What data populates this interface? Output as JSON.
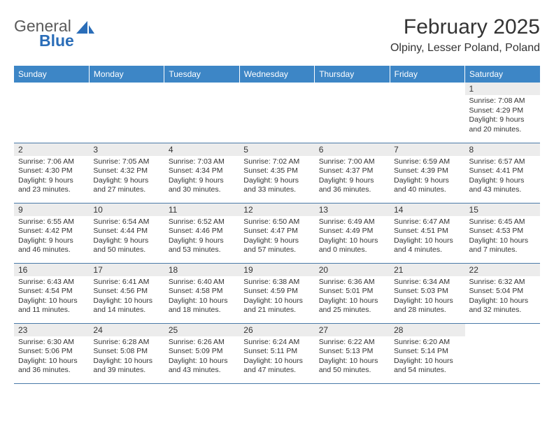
{
  "logo": {
    "text1": "General",
    "text2": "Blue",
    "shape_color": "#2a6db8"
  },
  "title": "February 2025",
  "location": "Olpiny, Lesser Poland, Poland",
  "header_bg": "#3d86c6",
  "daynum_bg": "#ececec",
  "border_color": "#4a7aa8",
  "day_names": [
    "Sunday",
    "Monday",
    "Tuesday",
    "Wednesday",
    "Thursday",
    "Friday",
    "Saturday"
  ],
  "weeks": [
    [
      null,
      null,
      null,
      null,
      null,
      null,
      {
        "n": "1",
        "sr": "Sunrise: 7:08 AM",
        "ss": "Sunset: 4:29 PM",
        "dl": "Daylight: 9 hours and 20 minutes."
      }
    ],
    [
      {
        "n": "2",
        "sr": "Sunrise: 7:06 AM",
        "ss": "Sunset: 4:30 PM",
        "dl": "Daylight: 9 hours and 23 minutes."
      },
      {
        "n": "3",
        "sr": "Sunrise: 7:05 AM",
        "ss": "Sunset: 4:32 PM",
        "dl": "Daylight: 9 hours and 27 minutes."
      },
      {
        "n": "4",
        "sr": "Sunrise: 7:03 AM",
        "ss": "Sunset: 4:34 PM",
        "dl": "Daylight: 9 hours and 30 minutes."
      },
      {
        "n": "5",
        "sr": "Sunrise: 7:02 AM",
        "ss": "Sunset: 4:35 PM",
        "dl": "Daylight: 9 hours and 33 minutes."
      },
      {
        "n": "6",
        "sr": "Sunrise: 7:00 AM",
        "ss": "Sunset: 4:37 PM",
        "dl": "Daylight: 9 hours and 36 minutes."
      },
      {
        "n": "7",
        "sr": "Sunrise: 6:59 AM",
        "ss": "Sunset: 4:39 PM",
        "dl": "Daylight: 9 hours and 40 minutes."
      },
      {
        "n": "8",
        "sr": "Sunrise: 6:57 AM",
        "ss": "Sunset: 4:41 PM",
        "dl": "Daylight: 9 hours and 43 minutes."
      }
    ],
    [
      {
        "n": "9",
        "sr": "Sunrise: 6:55 AM",
        "ss": "Sunset: 4:42 PM",
        "dl": "Daylight: 9 hours and 46 minutes."
      },
      {
        "n": "10",
        "sr": "Sunrise: 6:54 AM",
        "ss": "Sunset: 4:44 PM",
        "dl": "Daylight: 9 hours and 50 minutes."
      },
      {
        "n": "11",
        "sr": "Sunrise: 6:52 AM",
        "ss": "Sunset: 4:46 PM",
        "dl": "Daylight: 9 hours and 53 minutes."
      },
      {
        "n": "12",
        "sr": "Sunrise: 6:50 AM",
        "ss": "Sunset: 4:47 PM",
        "dl": "Daylight: 9 hours and 57 minutes."
      },
      {
        "n": "13",
        "sr": "Sunrise: 6:49 AM",
        "ss": "Sunset: 4:49 PM",
        "dl": "Daylight: 10 hours and 0 minutes."
      },
      {
        "n": "14",
        "sr": "Sunrise: 6:47 AM",
        "ss": "Sunset: 4:51 PM",
        "dl": "Daylight: 10 hours and 4 minutes."
      },
      {
        "n": "15",
        "sr": "Sunrise: 6:45 AM",
        "ss": "Sunset: 4:53 PM",
        "dl": "Daylight: 10 hours and 7 minutes."
      }
    ],
    [
      {
        "n": "16",
        "sr": "Sunrise: 6:43 AM",
        "ss": "Sunset: 4:54 PM",
        "dl": "Daylight: 10 hours and 11 minutes."
      },
      {
        "n": "17",
        "sr": "Sunrise: 6:41 AM",
        "ss": "Sunset: 4:56 PM",
        "dl": "Daylight: 10 hours and 14 minutes."
      },
      {
        "n": "18",
        "sr": "Sunrise: 6:40 AM",
        "ss": "Sunset: 4:58 PM",
        "dl": "Daylight: 10 hours and 18 minutes."
      },
      {
        "n": "19",
        "sr": "Sunrise: 6:38 AM",
        "ss": "Sunset: 4:59 PM",
        "dl": "Daylight: 10 hours and 21 minutes."
      },
      {
        "n": "20",
        "sr": "Sunrise: 6:36 AM",
        "ss": "Sunset: 5:01 PM",
        "dl": "Daylight: 10 hours and 25 minutes."
      },
      {
        "n": "21",
        "sr": "Sunrise: 6:34 AM",
        "ss": "Sunset: 5:03 PM",
        "dl": "Daylight: 10 hours and 28 minutes."
      },
      {
        "n": "22",
        "sr": "Sunrise: 6:32 AM",
        "ss": "Sunset: 5:04 PM",
        "dl": "Daylight: 10 hours and 32 minutes."
      }
    ],
    [
      {
        "n": "23",
        "sr": "Sunrise: 6:30 AM",
        "ss": "Sunset: 5:06 PM",
        "dl": "Daylight: 10 hours and 36 minutes."
      },
      {
        "n": "24",
        "sr": "Sunrise: 6:28 AM",
        "ss": "Sunset: 5:08 PM",
        "dl": "Daylight: 10 hours and 39 minutes."
      },
      {
        "n": "25",
        "sr": "Sunrise: 6:26 AM",
        "ss": "Sunset: 5:09 PM",
        "dl": "Daylight: 10 hours and 43 minutes."
      },
      {
        "n": "26",
        "sr": "Sunrise: 6:24 AM",
        "ss": "Sunset: 5:11 PM",
        "dl": "Daylight: 10 hours and 47 minutes."
      },
      {
        "n": "27",
        "sr": "Sunrise: 6:22 AM",
        "ss": "Sunset: 5:13 PM",
        "dl": "Daylight: 10 hours and 50 minutes."
      },
      {
        "n": "28",
        "sr": "Sunrise: 6:20 AM",
        "ss": "Sunset: 5:14 PM",
        "dl": "Daylight: 10 hours and 54 minutes."
      },
      null
    ]
  ]
}
